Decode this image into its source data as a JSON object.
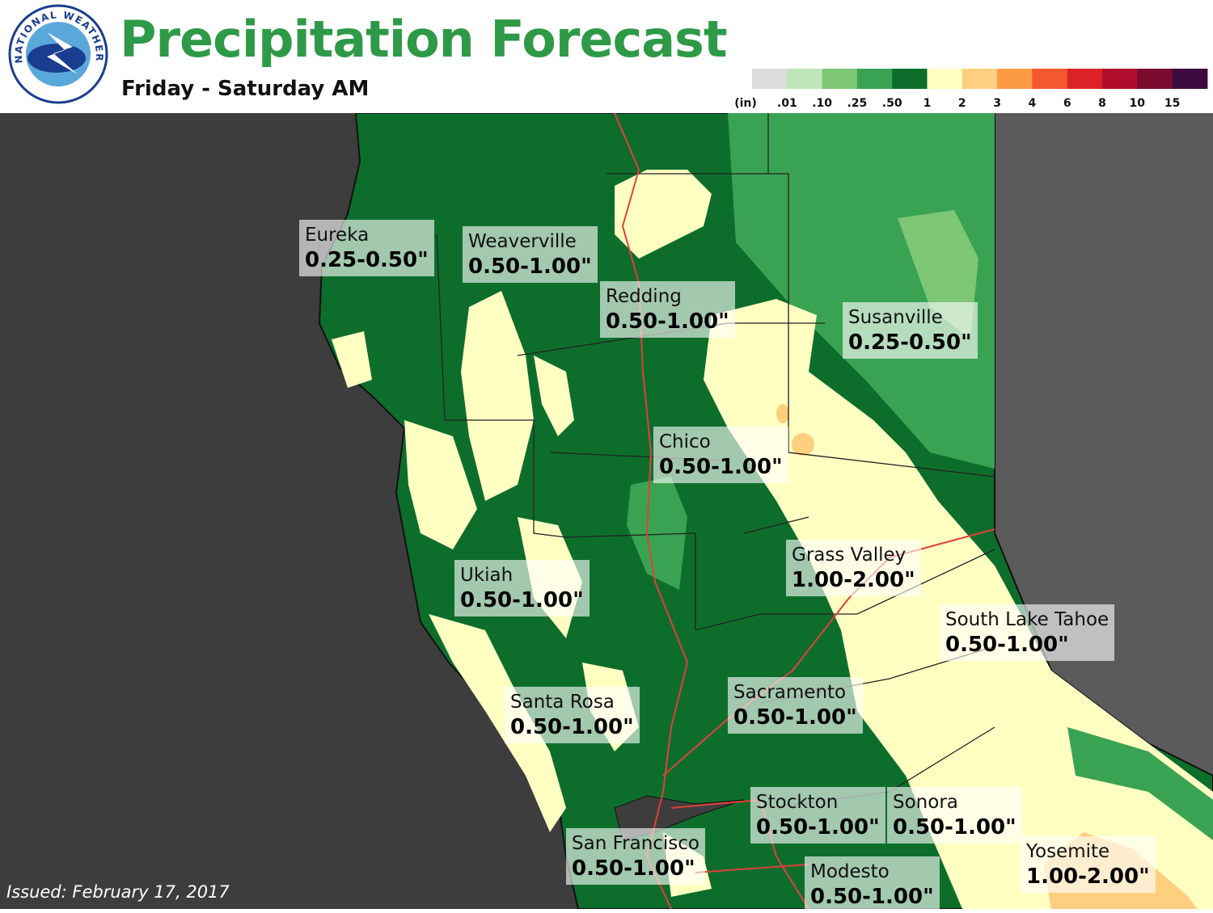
{
  "logo": {
    "text": "NATIONAL WEATHER SERVICE"
  },
  "header": {
    "title": "Precipitation Forecast",
    "subtitle": "Friday - Saturday AM"
  },
  "legend": {
    "unit": "(in)",
    "labels": [
      ".01",
      ".10",
      ".25",
      ".50",
      "1",
      "2",
      "3",
      "4",
      "6",
      "8",
      "10",
      "15"
    ],
    "colors": [
      "#dcdcdc",
      "#bfe6bb",
      "#7cc675",
      "#3aa353",
      "#0d6e2c",
      "#ffffc2",
      "#fdcf7e",
      "#fb9c45",
      "#f4582d",
      "#dc2226",
      "#b00d2c",
      "#7a0a2e",
      "#3e0a3e"
    ]
  },
  "cities": [
    {
      "name": "Eureka",
      "range": "0.25-0.50\""
    },
    {
      "name": "Weaverville",
      "range": "0.50-1.00\""
    },
    {
      "name": "Redding",
      "range": "0.50-1.00\""
    },
    {
      "name": "Susanville",
      "range": "0.25-0.50\""
    },
    {
      "name": "Chico",
      "range": "0.50-1.00\""
    },
    {
      "name": "Grass Valley",
      "range": "1.00-2.00\""
    },
    {
      "name": "South Lake Tahoe",
      "range": "0.50-1.00\""
    },
    {
      "name": "Ukiah",
      "range": "0.50-1.00\""
    },
    {
      "name": "Santa Rosa",
      "range": "0.50-1.00\""
    },
    {
      "name": "Sacramento",
      "range": "0.50-1.00\""
    },
    {
      "name": "Stockton",
      "range": "0.50-1.00\""
    },
    {
      "name": "Sonora",
      "range": "0.50-1.00\""
    },
    {
      "name": "San Francisco",
      "range": "0.50-1.00\""
    },
    {
      "name": "Modesto",
      "range": "0.50-1.00\""
    },
    {
      "name": "Yosemite",
      "range": "1.00-2.00\""
    }
  ],
  "footer": {
    "issued": "Issued: February 17, 2017"
  }
}
